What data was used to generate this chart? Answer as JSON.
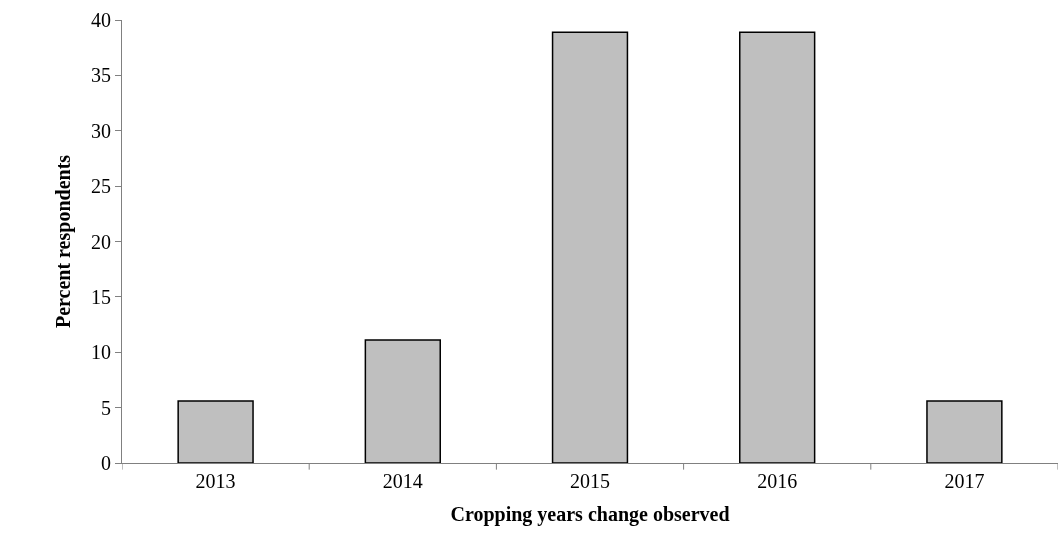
{
  "chart_data": {
    "type": "bar",
    "xlabel": "Cropping years change observed",
    "ylabel": "Percent respondents",
    "categories": [
      "2013",
      "2014",
      "2015",
      "2016",
      "2017"
    ],
    "values": [
      5.6,
      11.1,
      38.9,
      38.9,
      5.6
    ],
    "color": "#bfbfbf",
    "ylim": [
      0,
      40
    ],
    "yticks": [
      0,
      5,
      10,
      15,
      20,
      25,
      30,
      35,
      40
    ],
    "legend": false
  }
}
